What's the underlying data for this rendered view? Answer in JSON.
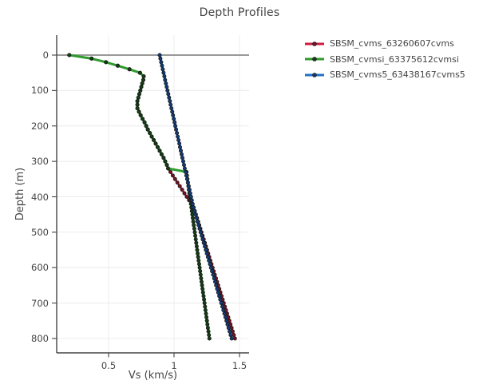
{
  "title": "Depth Profiles",
  "axes": {
    "x_label": "Vs (km/s)",
    "y_label": "Depth (m)",
    "x_tick_labels": [
      "0.5",
      "1",
      "1.5"
    ],
    "y_tick_labels": [
      "0",
      "100",
      "200",
      "300",
      "400",
      "500",
      "600",
      "700",
      "800"
    ]
  },
  "colors": {
    "background": "#ffffff",
    "grid": "#ececec",
    "zeroline": "#999999",
    "axis_line": "#444444",
    "text": "#444444",
    "marker_outline": "#1a1a1a"
  },
  "chart_data": {
    "type": "line",
    "title": "Depth Profiles",
    "xlabel": "Vs (km/s)",
    "ylabel": "Depth (m)",
    "x_ticks": [
      0.5,
      1,
      1.5
    ],
    "y_ticks": [
      0,
      100,
      200,
      300,
      400,
      500,
      600,
      700,
      800
    ],
    "xlim": [
      0.1,
      1.57
    ],
    "ylim_depth": [
      -56,
      841
    ],
    "y_axis_inverted": true,
    "grid": true,
    "zeroline_depth": 0,
    "legend_position": "right-top",
    "marker_step_m": 10,
    "series": [
      {
        "name": "SBSM_cvms_63260607cvms",
        "color": "#cf1c3f",
        "marker_color": "#7d1026",
        "line_width": 2.4,
        "points_depth_vs": [
          [
            0,
            0.2
          ],
          [
            10,
            0.37
          ],
          [
            20,
            0.48
          ],
          [
            30,
            0.57
          ],
          [
            40,
            0.66
          ],
          [
            50,
            0.74
          ],
          [
            55,
            0.77
          ],
          [
            70,
            0.765
          ],
          [
            90,
            0.75
          ],
          [
            110,
            0.735
          ],
          [
            130,
            0.72
          ],
          [
            150,
            0.72
          ],
          [
            170,
            0.745
          ],
          [
            190,
            0.775
          ],
          [
            210,
            0.8
          ],
          [
            230,
            0.83
          ],
          [
            250,
            0.86
          ],
          [
            270,
            0.89
          ],
          [
            290,
            0.92
          ],
          [
            310,
            0.945
          ],
          [
            320,
            0.955
          ],
          [
            430,
            1.15
          ],
          [
            800,
            1.465
          ]
        ]
      },
      {
        "name": "SBSM_cvmsi_63375612cvmsi",
        "color": "#2f9b2f",
        "marker_color": "#123f14",
        "line_width": 3,
        "points_depth_vs": [
          [
            0,
            0.2
          ],
          [
            10,
            0.37
          ],
          [
            20,
            0.48
          ],
          [
            30,
            0.57
          ],
          [
            40,
            0.66
          ],
          [
            50,
            0.74
          ],
          [
            55,
            0.77
          ],
          [
            70,
            0.765
          ],
          [
            90,
            0.75
          ],
          [
            110,
            0.735
          ],
          [
            130,
            0.72
          ],
          [
            150,
            0.72
          ],
          [
            170,
            0.745
          ],
          [
            190,
            0.775
          ],
          [
            210,
            0.8
          ],
          [
            230,
            0.83
          ],
          [
            250,
            0.86
          ],
          [
            270,
            0.89
          ],
          [
            290,
            0.92
          ],
          [
            310,
            0.945
          ],
          [
            320,
            0.955
          ],
          [
            330,
            1.095
          ],
          [
            800,
            1.27
          ]
        ]
      },
      {
        "name": "SBSM_cvms5_63438167cvms5",
        "color": "#2170cc",
        "marker_color": "#0d3d80",
        "line_width": 2.4,
        "points_depth_vs": [
          [
            0,
            0.89
          ],
          [
            430,
            1.148
          ],
          [
            800,
            1.44
          ]
        ]
      }
    ]
  }
}
